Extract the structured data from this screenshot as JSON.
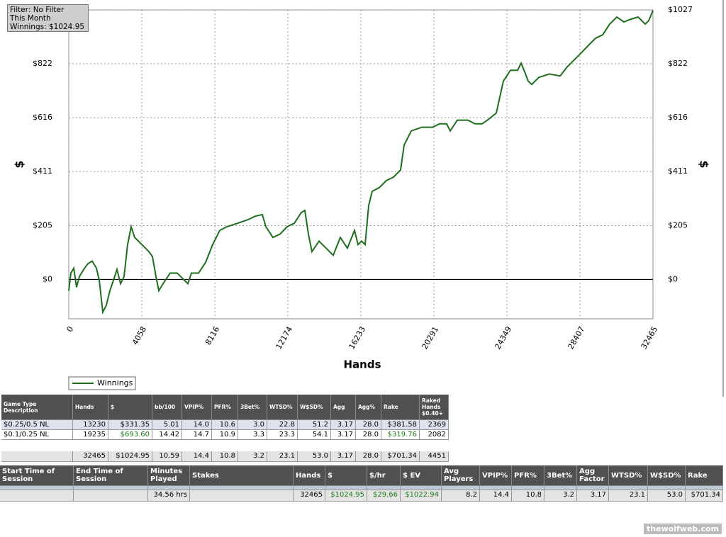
{
  "chart_data": {
    "type": "line",
    "x_label": "Hands",
    "y_label": "$",
    "y2_label": "$",
    "x": [
      0,
      118,
      276,
      433,
      591,
      827,
      1064,
      1300,
      1536,
      1694,
      1891,
      2088,
      2285,
      2482,
      2679,
      2876,
      3073,
      3270,
      3467,
      3664,
      4058,
      4452,
      4649,
      4846,
      5004,
      5240,
      5634,
      6028,
      6422,
      6619,
      6816,
      7210,
      7604,
      7998,
      8392,
      8786,
      9377,
      9968,
      10359,
      10756,
      10953,
      11347,
      11741,
      12135,
      12529,
      12923,
      13120,
      13317,
      13514,
      13908,
      14302,
      14696,
      15090,
      15484,
      15878,
      16075,
      16272,
      16469,
      16666,
      16863,
      17257,
      17651,
      18045,
      18439,
      18636,
      19030,
      19621,
      20212,
      20606,
      21000,
      21197,
      21591,
      22182,
      22576,
      22970,
      23364,
      23758,
      24152,
      24546,
      24940,
      25137,
      25334,
      25531,
      25728,
      26122,
      26713,
      27304,
      27698,
      28092,
      28486,
      28880,
      29274,
      29668,
      30062,
      30456,
      30850,
      31244,
      31638,
      32032,
      32229,
      32465
    ],
    "series": [
      {
        "name": "Winnings",
        "color": "#1e6e1e",
        "values": [
          -43,
          24,
          43,
          -30,
          11,
          38,
          60,
          70,
          43,
          -3,
          -125,
          -98,
          -43,
          -3,
          38,
          -16,
          11,
          133,
          201,
          160,
          133,
          106,
          87,
          11,
          -43,
          -16,
          24,
          24,
          -3,
          -16,
          24,
          24,
          65,
          133,
          187,
          201,
          214,
          228,
          241,
          247,
          201,
          160,
          173,
          201,
          214,
          255,
          263,
          173,
          106,
          146,
          119,
          92,
          160,
          119,
          187,
          133,
          146,
          133,
          282,
          336,
          350,
          377,
          390,
          417,
          512,
          566,
          580,
          580,
          593,
          593,
          566,
          607,
          607,
          593,
          593,
          612,
          634,
          756,
          797,
          797,
          824,
          791,
          756,
          743,
          770,
          783,
          775,
          810,
          837,
          864,
          892,
          919,
          932,
          973,
          1000,
          981,
          992,
          1000,
          973,
          986,
          1025
        ]
      }
    ],
    "xlim": [
      0,
      32465
    ],
    "xticks": [
      0,
      4058,
      8116,
      12174,
      16233,
      20291,
      24349,
      28407,
      32465
    ],
    "ylim": [
      -150,
      1027
    ],
    "yticks": [
      {
        "value": 0,
        "label": "$0"
      },
      {
        "value": 205,
        "label": "$205"
      },
      {
        "value": 411,
        "label": "$411"
      },
      {
        "value": 616,
        "label": "$616"
      },
      {
        "value": 822,
        "label": "$822"
      },
      {
        "value": 1027,
        "label": "$1027"
      }
    ],
    "grid": true
  },
  "filter_box": [
    "Filter: No Filter",
    "This Month",
    "Winnings: $1024.95"
  ],
  "table1": {
    "headers": [
      "Game Type Description",
      "Hands",
      "$",
      "bb/100",
      "VPIP%",
      "PFR%",
      "3Bet%",
      "WTSD%",
      "W$SD%",
      "Agg",
      "Agg%",
      "Rake",
      "Raked Hands $0.40+"
    ],
    "rows": [
      [
        "$0.25/0.5 NL",
        "13230",
        "$331.35",
        "5.01",
        "14.0",
        "10.6",
        "3.0",
        "22.8",
        "51.2",
        "3.17",
        "28.0",
        "$381.58",
        "2369"
      ],
      [
        "$0.1/0.25 NL",
        "19235",
        "$693.60",
        "14.42",
        "14.7",
        "10.9",
        "3.3",
        "23.3",
        "54.1",
        "3.17",
        "28.0",
        "$319.76",
        "2082"
      ]
    ],
    "totals": [
      null,
      "32465",
      "$1024.95",
      "10.59",
      "14.4",
      "10.8",
      "3.2",
      "23.1",
      "53.0",
      "3.17",
      "28.0",
      "$701.34",
      "4451"
    ]
  },
  "table2": {
    "headers": [
      "Start Time of Session",
      "End Time of Session",
      "Minutes Played",
      "Stakes",
      "Hands",
      "$",
      "$/hr",
      "$ EV",
      "Avg Players",
      "VPIP%",
      "PFR%",
      "3Bet%",
      "Agg Factor",
      "WTSD%",
      "W$SD%",
      "Rake"
    ],
    "totals": [
      null,
      null,
      "34.56 hrs",
      null,
      "32465",
      "$1024.95",
      "$29.66",
      "$1022.94",
      "8.2",
      "14.4",
      "10.8",
      "3.2",
      "3.17",
      "23.1",
      "53.0",
      "$701.34"
    ]
  },
  "watermark": "thewolfweb.com"
}
